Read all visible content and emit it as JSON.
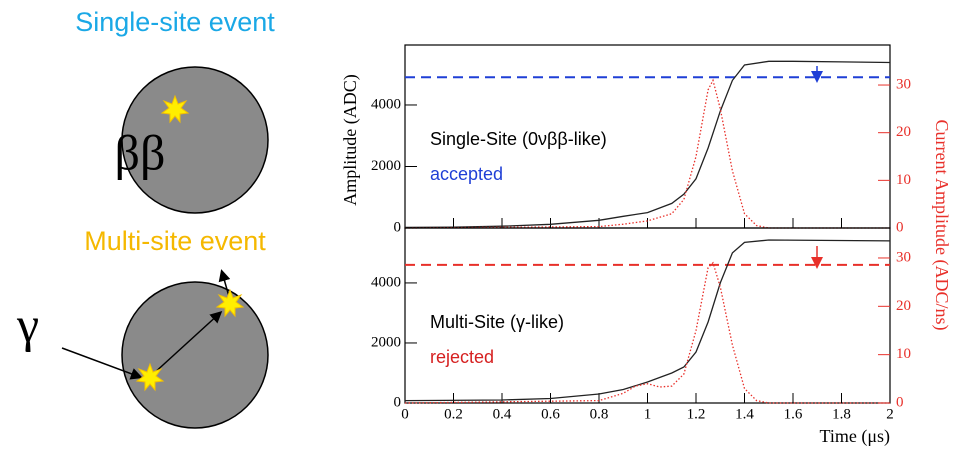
{
  "diagram": {
    "single_title": "Single-site event",
    "single_label": "ββ",
    "multi_title": "Multi-site event",
    "multi_label": "γ"
  },
  "chart_data": [
    {
      "type": "line",
      "ylabel": "Amplitude (ADC)",
      "y2label": "Current Amplitude (ADC/ns)",
      "annotation": "Single-Site (0νββ-like)",
      "status": "accepted",
      "status_color": "#1f3fd6",
      "threshold": 4900,
      "threshold_color": "#1f3fd6",
      "xlim": [
        0,
        2
      ],
      "ylim": [
        0,
        5950
      ],
      "yticks": [
        0,
        2000,
        4000
      ],
      "y2lim": [
        0,
        38.4
      ],
      "y2ticks": [
        0,
        10,
        20,
        30
      ],
      "series": [
        {
          "color": "#222222",
          "x": [
            0,
            0.2,
            0.4,
            0.6,
            0.8,
            0.9,
            1.0,
            1.1,
            1.15,
            1.2,
            1.25,
            1.3,
            1.35,
            1.4,
            1.5,
            1.6,
            1.8,
            2.0
          ],
          "values": [
            20,
            30,
            60,
            120,
            250,
            380,
            500,
            800,
            1100,
            1600,
            2600,
            3800,
            4800,
            5300,
            5420,
            5420,
            5400,
            5380
          ]
        },
        {
          "color": "#e8302a",
          "axis": "y2",
          "x": [
            0,
            0.8,
            0.9,
            1.0,
            1.1,
            1.15,
            1.2,
            1.25,
            1.27,
            1.3,
            1.35,
            1.4,
            1.45,
            1.5,
            2.0
          ],
          "values": [
            0,
            0.3,
            0.8,
            1.5,
            3,
            6,
            15,
            29,
            31,
            25,
            12,
            3,
            0.5,
            0,
            0
          ]
        }
      ]
    },
    {
      "type": "line",
      "xlabel": "Time (μs)",
      "annotation": "Multi-Site (γ-like)",
      "status": "rejected",
      "status_color": "#d62020",
      "threshold": 4600,
      "threshold_color": "#e8302a",
      "xlim": [
        0,
        2
      ],
      "xticks": [
        0,
        0.2,
        0.4,
        0.6,
        0.8,
        1,
        1.2,
        1.4,
        1.6,
        1.8,
        2
      ],
      "ylim": [
        0,
        5830
      ],
      "yticks": [
        0,
        2000,
        4000
      ],
      "y2lim": [
        0,
        36.2
      ],
      "y2ticks": [
        0,
        10,
        20,
        30
      ],
      "series": [
        {
          "color": "#222222",
          "x": [
            0,
            0.4,
            0.6,
            0.8,
            0.9,
            1.0,
            1.05,
            1.1,
            1.15,
            1.2,
            1.25,
            1.3,
            1.35,
            1.4,
            1.5,
            2.0
          ],
          "values": [
            80,
            100,
            150,
            300,
            450,
            700,
            850,
            1000,
            1200,
            1700,
            2700,
            4000,
            5000,
            5350,
            5430,
            5400
          ]
        },
        {
          "color": "#e8302a",
          "axis": "y2",
          "x": [
            0,
            0.8,
            0.9,
            0.95,
            1.0,
            1.05,
            1.1,
            1.15,
            1.2,
            1.25,
            1.27,
            1.3,
            1.35,
            1.4,
            1.45,
            1.5,
            2.0
          ],
          "values": [
            0,
            0.5,
            2,
            3.5,
            4,
            3.3,
            3.5,
            6,
            15,
            28,
            29,
            24,
            12,
            3,
            0.5,
            0,
            0
          ]
        }
      ]
    }
  ]
}
